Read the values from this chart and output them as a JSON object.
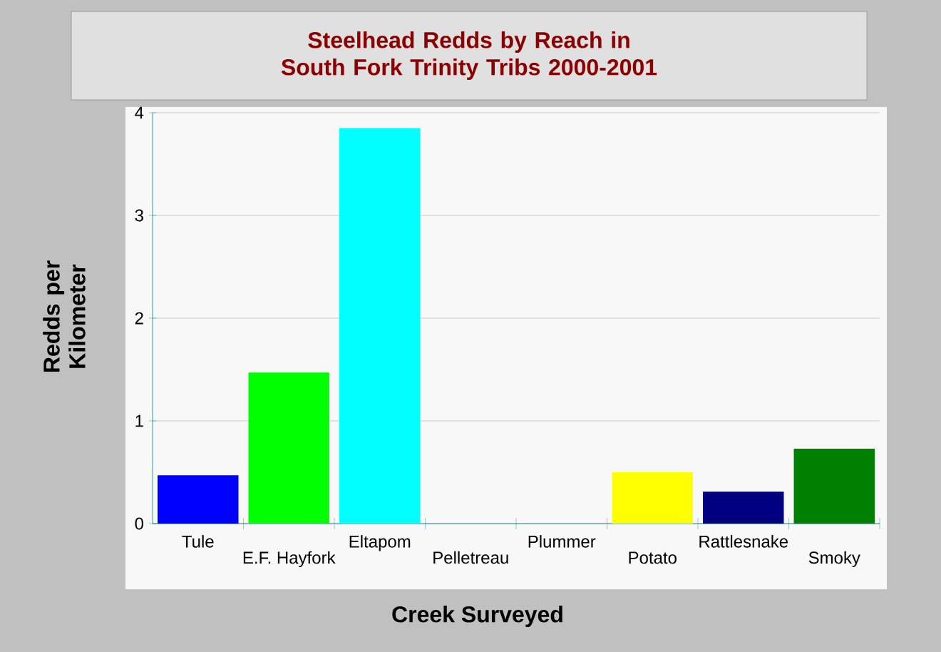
{
  "chart_data": {
    "type": "bar",
    "title": "Steelhead Redds by Reach in South Fork Trinity Tribs 2000-2001",
    "xlabel": "Creek Surveyed",
    "ylabel": "Redds per Kilometer",
    "categories": [
      "Tule",
      "E.F. Hayfork",
      "Eltapom",
      "Pelletreau",
      "Plummer",
      "Potato",
      "Rattlesnake",
      "Smoky"
    ],
    "values": [
      0.47,
      1.47,
      3.85,
      0,
      0,
      0.5,
      0.31,
      0.73
    ],
    "colors": [
      "#0000ff",
      "#00ff00",
      "#00ffff",
      "#ff0000",
      "#ff00ff",
      "#ffff00",
      "#000080",
      "#008000"
    ],
    "ylim": [
      0,
      4
    ],
    "yticks": [
      0,
      1,
      2,
      3,
      4
    ],
    "grid": "y"
  }
}
